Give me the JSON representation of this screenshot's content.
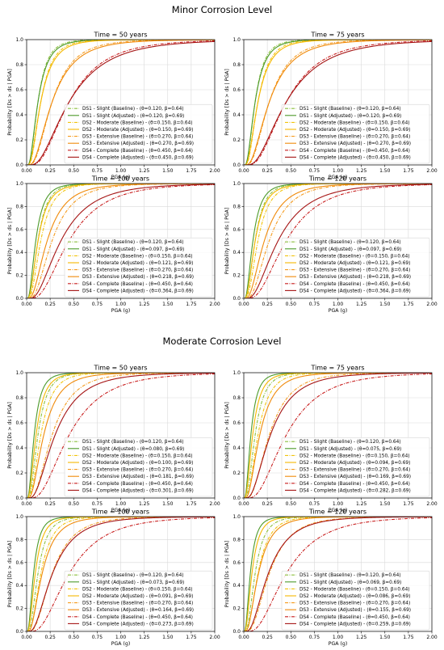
{
  "sections": [
    {
      "title": "Minor Corrosion Level"
    },
    {
      "title": "Moderate Corrosion Level"
    }
  ],
  "chart_data": [
    {
      "type": "line",
      "section": 0,
      "title": "Time = 50 years",
      "xlabel": "PGA (g)",
      "ylabel": "Probability [Ds > ds | PGA]",
      "xlim": [
        0,
        2.0
      ],
      "ylim": [
        0,
        1.0
      ],
      "grid": true,
      "legend": "lower-right",
      "x_ticks": [
        "0.00",
        "0.25",
        "0.50",
        "0.75",
        "1.00",
        "1.25",
        "1.50",
        "1.75",
        "2.00"
      ],
      "y_ticks": [
        "0.0",
        "0.2",
        "0.4",
        "0.6",
        "0.8",
        "1.0"
      ],
      "series": [
        {
          "name": "DS1 - Slight (Baseline) - (θ=0.120, β=0.64)",
          "theta": 0.12,
          "beta": 0.64,
          "color": "#8cbf3f",
          "dash": "dashdot"
        },
        {
          "name": "DS1 - Slight (Adjusted) - (θ=0.120, β=0.69)",
          "theta": 0.12,
          "beta": 0.69,
          "color": "#4c9a2a",
          "dash": "solid"
        },
        {
          "name": "DS2 - Moderate (Baseline) - (θ=0.150, β=0.64)",
          "theta": 0.15,
          "beta": 0.64,
          "color": "#f2c40d",
          "dash": "dashdot"
        },
        {
          "name": "DS2 - Moderate (Adjusted) - (θ=0.150, β=0.69)",
          "theta": 0.15,
          "beta": 0.69,
          "color": "#f5b800",
          "dash": "solid"
        },
        {
          "name": "DS3 - Extensive (Baseline) - (θ=0.270, β=0.64)",
          "theta": 0.27,
          "beta": 0.64,
          "color": "#f59b1e",
          "dash": "dashdot"
        },
        {
          "name": "DS3 - Extensive (Adjusted) - (θ=0.270, β=0.69)",
          "theta": 0.27,
          "beta": 0.69,
          "color": "#f08a0a",
          "dash": "solid"
        },
        {
          "name": "DS4 - Complete (Baseline) - (θ=0.450, β=0.64)",
          "theta": 0.45,
          "beta": 0.64,
          "color": "#c81e1e",
          "dash": "dashdot"
        },
        {
          "name": "DS4 - Complete (Adjusted) - (θ=0.450, β=0.69)",
          "theta": 0.45,
          "beta": 0.69,
          "color": "#a51414",
          "dash": "solid"
        }
      ]
    },
    {
      "type": "line",
      "section": 0,
      "title": "Time = 75 years",
      "xlabel": "PGA (g)",
      "ylabel": "Probability [Ds > ds | PGA]",
      "xlim": [
        0,
        2.0
      ],
      "ylim": [
        0,
        1.0
      ],
      "grid": true,
      "legend": "lower-right",
      "x_ticks": [
        "0.00",
        "0.25",
        "0.50",
        "0.75",
        "1.00",
        "1.25",
        "1.50",
        "1.75",
        "2.00"
      ],
      "y_ticks": [
        "0.0",
        "0.2",
        "0.4",
        "0.6",
        "0.8",
        "1.0"
      ],
      "series": [
        {
          "name": "DS1 - Slight (Baseline) - (θ=0.120, β=0.64)",
          "theta": 0.12,
          "beta": 0.64,
          "color": "#8cbf3f",
          "dash": "dashdot"
        },
        {
          "name": "DS1 - Slight (Adjusted) - (θ=0.120, β=0.69)",
          "theta": 0.12,
          "beta": 0.69,
          "color": "#4c9a2a",
          "dash": "solid"
        },
        {
          "name": "DS2 - Moderate (Baseline) - (θ=0.150, β=0.64)",
          "theta": 0.15,
          "beta": 0.64,
          "color": "#f2c40d",
          "dash": "dashdot"
        },
        {
          "name": "DS2 - Moderate (Adjusted) - (θ=0.150, β=0.69)",
          "theta": 0.15,
          "beta": 0.69,
          "color": "#f5b800",
          "dash": "solid"
        },
        {
          "name": "DS3 - Extensive (Baseline) - (θ=0.270, β=0.64)",
          "theta": 0.27,
          "beta": 0.64,
          "color": "#f59b1e",
          "dash": "dashdot"
        },
        {
          "name": "DS3 - Extensive (Adjusted) - (θ=0.270, β=0.69)",
          "theta": 0.27,
          "beta": 0.69,
          "color": "#f08a0a",
          "dash": "solid"
        },
        {
          "name": "DS4 - Complete (Baseline) - (θ=0.450, β=0.64)",
          "theta": 0.45,
          "beta": 0.64,
          "color": "#c81e1e",
          "dash": "dashdot"
        },
        {
          "name": "DS4 - Complete (Adjusted) - (θ=0.450, β=0.69)",
          "theta": 0.45,
          "beta": 0.69,
          "color": "#a51414",
          "dash": "solid"
        }
      ]
    },
    {
      "type": "line",
      "section": 0,
      "title": "Time = 100 years",
      "xlabel": "PGA (g)",
      "ylabel": "Probability [Ds > ds | PGA]",
      "xlim": [
        0,
        2.0
      ],
      "ylim": [
        0,
        1.0
      ],
      "grid": true,
      "legend": "lower-right",
      "x_ticks": [
        "0.00",
        "0.25",
        "0.50",
        "0.75",
        "1.00",
        "1.25",
        "1.50",
        "1.75",
        "2.00"
      ],
      "y_ticks": [
        "0.0",
        "0.2",
        "0.4",
        "0.6",
        "0.8",
        "1.0"
      ],
      "series": [
        {
          "name": "DS1 - Slight (Baseline) - (θ=0.120, β=0.64)",
          "theta": 0.12,
          "beta": 0.64,
          "color": "#8cbf3f",
          "dash": "dashdot"
        },
        {
          "name": "DS1 - Slight (Adjusted) - (θ=0.097, β=0.69)",
          "theta": 0.097,
          "beta": 0.69,
          "color": "#4c9a2a",
          "dash": "solid"
        },
        {
          "name": "DS2 - Moderate (Baseline) - (θ=0.150, β=0.64)",
          "theta": 0.15,
          "beta": 0.64,
          "color": "#f2c40d",
          "dash": "dashdot"
        },
        {
          "name": "DS2 - Moderate (Adjusted) - (θ=0.121, β=0.69)",
          "theta": 0.121,
          "beta": 0.69,
          "color": "#f5b800",
          "dash": "solid"
        },
        {
          "name": "DS3 - Extensive (Baseline) - (θ=0.270, β=0.64)",
          "theta": 0.27,
          "beta": 0.64,
          "color": "#f59b1e",
          "dash": "dashdot"
        },
        {
          "name": "DS3 - Extensive (Adjusted) - (θ=0.218, β=0.69)",
          "theta": 0.218,
          "beta": 0.69,
          "color": "#f08a0a",
          "dash": "solid"
        },
        {
          "name": "DS4 - Complete (Baseline) - (θ=0.450, β=0.64)",
          "theta": 0.45,
          "beta": 0.64,
          "color": "#c81e1e",
          "dash": "dashdot"
        },
        {
          "name": "DS4 - Complete (Adjusted) - (θ=0.364, β=0.69)",
          "theta": 0.364,
          "beta": 0.69,
          "color": "#a51414",
          "dash": "solid"
        }
      ]
    },
    {
      "type": "line",
      "section": 0,
      "title": "Time = 120 years",
      "xlabel": "PGA (g)",
      "ylabel": "Probability [Ds > ds | PGA]",
      "xlim": [
        0,
        2.0
      ],
      "ylim": [
        0,
        1.0
      ],
      "grid": true,
      "legend": "lower-right",
      "x_ticks": [
        "0.00",
        "0.25",
        "0.50",
        "0.75",
        "1.00",
        "1.25",
        "1.50",
        "1.75",
        "2.00"
      ],
      "y_ticks": [
        "0.0",
        "0.2",
        "0.4",
        "0.6",
        "0.8",
        "1.0"
      ],
      "series": [
        {
          "name": "DS1 - Slight (Baseline) - (θ=0.120, β=0.64)",
          "theta": 0.12,
          "beta": 0.64,
          "color": "#8cbf3f",
          "dash": "dashdot"
        },
        {
          "name": "DS1 - Slight (Adjusted) - (θ=0.097, β=0.69)",
          "theta": 0.097,
          "beta": 0.69,
          "color": "#4c9a2a",
          "dash": "solid"
        },
        {
          "name": "DS2 - Moderate (Baseline) - (θ=0.150, β=0.64)",
          "theta": 0.15,
          "beta": 0.64,
          "color": "#f2c40d",
          "dash": "dashdot"
        },
        {
          "name": "DS2 - Moderate (Adjusted) - (θ=0.121, β=0.69)",
          "theta": 0.121,
          "beta": 0.69,
          "color": "#f5b800",
          "dash": "solid"
        },
        {
          "name": "DS3 - Extensive (Baseline) - (θ=0.270, β=0.64)",
          "theta": 0.27,
          "beta": 0.64,
          "color": "#f59b1e",
          "dash": "dashdot"
        },
        {
          "name": "DS3 - Extensive (Adjusted) - (θ=0.218, β=0.69)",
          "theta": 0.218,
          "beta": 0.69,
          "color": "#f08a0a",
          "dash": "solid"
        },
        {
          "name": "DS4 - Complete (Baseline) - (θ=0.450, β=0.64)",
          "theta": 0.45,
          "beta": 0.64,
          "color": "#c81e1e",
          "dash": "dashdot"
        },
        {
          "name": "DS4 - Complete (Adjusted) - (θ=0.364, β=0.69)",
          "theta": 0.364,
          "beta": 0.69,
          "color": "#a51414",
          "dash": "solid"
        }
      ]
    },
    {
      "type": "line",
      "section": 1,
      "title": "Time = 50 years",
      "xlabel": "PGA (g)",
      "ylabel": "Probability [Ds > ds | PGA]",
      "xlim": [
        0,
        2.0
      ],
      "ylim": [
        0,
        1.0
      ],
      "grid": true,
      "legend": "lower-right",
      "x_ticks": [
        "0.00",
        "0.25",
        "0.50",
        "0.75",
        "1.00",
        "1.25",
        "1.50",
        "1.75",
        "2.00"
      ],
      "y_ticks": [
        "0.0",
        "0.2",
        "0.4",
        "0.6",
        "0.8",
        "1.0"
      ],
      "series": [
        {
          "name": "DS1 - Slight (Baseline) - (θ=0.120, β=0.64)",
          "theta": 0.12,
          "beta": 0.64,
          "color": "#8cbf3f",
          "dash": "dashdot"
        },
        {
          "name": "DS1 - Slight (Adjusted) - (θ=0.080, β=0.69)",
          "theta": 0.08,
          "beta": 0.69,
          "color": "#4c9a2a",
          "dash": "solid"
        },
        {
          "name": "DS2 - Moderate (Baseline) - (θ=0.150, β=0.64)",
          "theta": 0.15,
          "beta": 0.64,
          "color": "#f2c40d",
          "dash": "dashdot"
        },
        {
          "name": "DS2 - Moderate (Adjusted) - (θ=0.100, β=0.69)",
          "theta": 0.1,
          "beta": 0.69,
          "color": "#f5b800",
          "dash": "solid"
        },
        {
          "name": "DS3 - Extensive (Baseline) - (θ=0.270, β=0.64)",
          "theta": 0.27,
          "beta": 0.64,
          "color": "#f59b1e",
          "dash": "dashdot"
        },
        {
          "name": "DS3 - Extensive (Adjusted) - (θ=0.181, β=0.69)",
          "theta": 0.181,
          "beta": 0.69,
          "color": "#f08a0a",
          "dash": "solid"
        },
        {
          "name": "DS4 - Complete (Baseline) - (θ=0.450, β=0.64)",
          "theta": 0.45,
          "beta": 0.64,
          "color": "#c81e1e",
          "dash": "dashdot"
        },
        {
          "name": "DS4 - Complete (Adjusted) - (θ=0.301, β=0.69)",
          "theta": 0.301,
          "beta": 0.69,
          "color": "#a51414",
          "dash": "solid"
        }
      ]
    },
    {
      "type": "line",
      "section": 1,
      "title": "Time = 75 years",
      "xlabel": "PGA (g)",
      "ylabel": "Probability [Ds > ds | PGA]",
      "xlim": [
        0,
        2.0
      ],
      "ylim": [
        0,
        1.0
      ],
      "grid": true,
      "legend": "lower-right",
      "x_ticks": [
        "0.00",
        "0.25",
        "0.50",
        "0.75",
        "1.00",
        "1.25",
        "1.50",
        "1.75",
        "2.00"
      ],
      "y_ticks": [
        "0.0",
        "0.2",
        "0.4",
        "0.6",
        "0.8",
        "1.0"
      ],
      "series": [
        {
          "name": "DS1 - Slight (Baseline) - (θ=0.120, β=0.64)",
          "theta": 0.12,
          "beta": 0.64,
          "color": "#8cbf3f",
          "dash": "dashdot"
        },
        {
          "name": "DS1 - Slight (Adjusted) - (θ=0.075, β=0.69)",
          "theta": 0.075,
          "beta": 0.69,
          "color": "#4c9a2a",
          "dash": "solid"
        },
        {
          "name": "DS2 - Moderate (Baseline) - (θ=0.150, β=0.64)",
          "theta": 0.15,
          "beta": 0.64,
          "color": "#f2c40d",
          "dash": "dashdot"
        },
        {
          "name": "DS2 - Moderate (Adjusted) - (θ=0.094, β=0.69)",
          "theta": 0.094,
          "beta": 0.69,
          "color": "#f5b800",
          "dash": "solid"
        },
        {
          "name": "DS3 - Extensive (Baseline) - (θ=0.270, β=0.64)",
          "theta": 0.27,
          "beta": 0.64,
          "color": "#f59b1e",
          "dash": "dashdot"
        },
        {
          "name": "DS3 - Extensive (Adjusted) - (θ=0.169, β=0.69)",
          "theta": 0.169,
          "beta": 0.69,
          "color": "#f08a0a",
          "dash": "solid"
        },
        {
          "name": "DS4 - Complete (Baseline) - (θ=0.450, β=0.64)",
          "theta": 0.45,
          "beta": 0.64,
          "color": "#c81e1e",
          "dash": "dashdot"
        },
        {
          "name": "DS4 - Complete (Adjusted) - (θ=0.282, β=0.69)",
          "theta": 0.282,
          "beta": 0.69,
          "color": "#a51414",
          "dash": "solid"
        }
      ]
    },
    {
      "type": "line",
      "section": 1,
      "title": "Time = 100 years",
      "xlabel": "PGA (g)",
      "ylabel": "Probability [Ds > ds | PGA]",
      "xlim": [
        0,
        2.0
      ],
      "ylim": [
        0,
        1.0
      ],
      "grid": true,
      "legend": "lower-right",
      "x_ticks": [
        "0.00",
        "0.25",
        "0.50",
        "0.75",
        "1.00",
        "1.25",
        "1.50",
        "1.75",
        "2.00"
      ],
      "y_ticks": [
        "0.0",
        "0.2",
        "0.4",
        "0.6",
        "0.8",
        "1.0"
      ],
      "series": [
        {
          "name": "DS1 - Slight (Baseline) - (θ=0.120, β=0.64)",
          "theta": 0.12,
          "beta": 0.64,
          "color": "#8cbf3f",
          "dash": "dashdot"
        },
        {
          "name": "DS1 - Slight (Adjusted) - (θ=0.073, β=0.69)",
          "theta": 0.073,
          "beta": 0.69,
          "color": "#4c9a2a",
          "dash": "solid"
        },
        {
          "name": "DS2 - Moderate (Baseline) - (θ=0.150, β=0.64)",
          "theta": 0.15,
          "beta": 0.64,
          "color": "#f2c40d",
          "dash": "dashdot"
        },
        {
          "name": "DS2 - Moderate (Adjusted) - (θ=0.091, β=0.69)",
          "theta": 0.091,
          "beta": 0.69,
          "color": "#f5b800",
          "dash": "solid"
        },
        {
          "name": "DS3 - Extensive (Baseline) - (θ=0.270, β=0.64)",
          "theta": 0.27,
          "beta": 0.64,
          "color": "#f59b1e",
          "dash": "dashdot"
        },
        {
          "name": "DS3 - Extensive (Adjusted) - (θ=0.164, β=0.69)",
          "theta": 0.164,
          "beta": 0.69,
          "color": "#f08a0a",
          "dash": "solid"
        },
        {
          "name": "DS4 - Complete (Baseline) - (θ=0.450, β=0.64)",
          "theta": 0.45,
          "beta": 0.64,
          "color": "#c81e1e",
          "dash": "dashdot"
        },
        {
          "name": "DS4 - Complete (Adjusted) - (θ=0.273, β=0.69)",
          "theta": 0.273,
          "beta": 0.69,
          "color": "#a51414",
          "dash": "solid"
        }
      ]
    },
    {
      "type": "line",
      "section": 1,
      "title": "Time = 120 years",
      "xlabel": "PGA (g)",
      "ylabel": "Probability [Ds > ds | PGA]",
      "xlim": [
        0,
        2.0
      ],
      "ylim": [
        0,
        1.0
      ],
      "grid": true,
      "legend": "lower-right",
      "x_ticks": [
        "0.00",
        "0.25",
        "0.50",
        "0.75",
        "1.00",
        "1.25",
        "1.50",
        "1.75",
        "2.00"
      ],
      "y_ticks": [
        "0.0",
        "0.2",
        "0.4",
        "0.6",
        "0.8",
        "1.0"
      ],
      "series": [
        {
          "name": "DS1 - Slight (Baseline) - (θ=0.120, β=0.64)",
          "theta": 0.12,
          "beta": 0.64,
          "color": "#8cbf3f",
          "dash": "dashdot"
        },
        {
          "name": "DS1 - Slight (Adjusted) - (θ=0.069, β=0.69)",
          "theta": 0.069,
          "beta": 0.69,
          "color": "#4c9a2a",
          "dash": "solid"
        },
        {
          "name": "DS2 - Moderate (Baseline) - (θ=0.150, β=0.64)",
          "theta": 0.15,
          "beta": 0.64,
          "color": "#f2c40d",
          "dash": "dashdot"
        },
        {
          "name": "DS2 - Moderate (Adjusted) - (θ=0.086, β=0.69)",
          "theta": 0.086,
          "beta": 0.69,
          "color": "#f5b800",
          "dash": "solid"
        },
        {
          "name": "DS3 - Extensive (Baseline) - (θ=0.270, β=0.64)",
          "theta": 0.27,
          "beta": 0.64,
          "color": "#f59b1e",
          "dash": "dashdot"
        },
        {
          "name": "DS3 - Extensive (Adjusted) - (θ=0.155, β=0.69)",
          "theta": 0.155,
          "beta": 0.69,
          "color": "#f08a0a",
          "dash": "solid"
        },
        {
          "name": "DS4 - Complete (Baseline) - (θ=0.450, β=0.64)",
          "theta": 0.45,
          "beta": 0.64,
          "color": "#c81e1e",
          "dash": "dashdot"
        },
        {
          "name": "DS4 - Complete (Adjusted) - (θ=0.259, β=0.69)",
          "theta": 0.259,
          "beta": 0.69,
          "color": "#a51414",
          "dash": "solid"
        }
      ]
    }
  ]
}
